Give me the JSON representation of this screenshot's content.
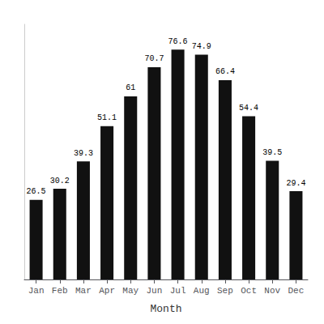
{
  "chart_data": {
    "type": "bar",
    "xlabel": "Month",
    "categories": [
      "Jan",
      "Feb",
      "Mar",
      "Apr",
      "May",
      "Jun",
      "Jul",
      "Aug",
      "Sep",
      "Oct",
      "Nov",
      "Dec"
    ],
    "values": [
      26.5,
      30.2,
      39.3,
      51.1,
      61.0,
      70.7,
      76.6,
      74.9,
      66.4,
      54.4,
      39.5,
      29.4
    ],
    "color": "#111111",
    "ylim": [
      0,
      85
    ],
    "grid": false,
    "data_labels": true,
    "tick_labels": "x"
  }
}
